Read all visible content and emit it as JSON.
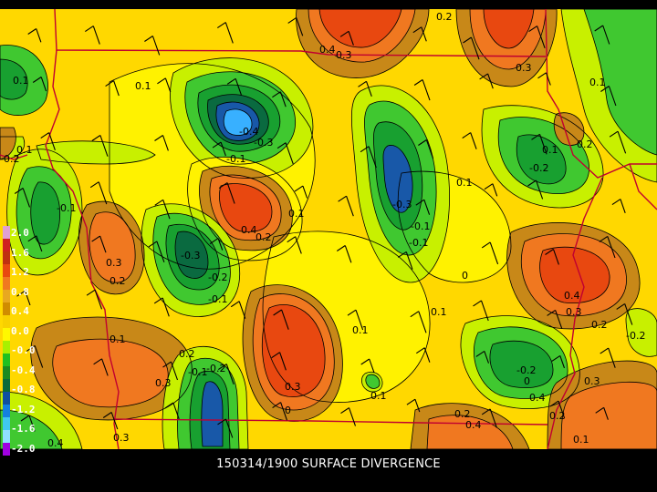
{
  "title": "150314/1900 SURFACE DIVERGENCE",
  "legend": {
    "labels": [
      "2.0",
      "1.6",
      "1.2",
      "0.8",
      "0.4",
      "0.0",
      "-0.0",
      "-0.4",
      "-0.8",
      "-1.2",
      "-1.6",
      "-2.0"
    ],
    "colors": [
      "#e0a0d0",
      "#d02020",
      "#c03010",
      "#e84810",
      "#f07820",
      "#e8a820",
      "#d08c00",
      "#f8d000",
      "#fff800",
      "#a8f000",
      "#20c020",
      "#1a8a20",
      "#0a6a3a",
      "#1050a0",
      "#1480e0",
      "#40c8f0",
      "#90e0ff",
      "#a000e0"
    ]
  },
  "palette": {
    "p04": "#e84810",
    "p03": "#f07820",
    "p02": "#c88818",
    "p01": "#ffc800",
    "p00": "#ffea00",
    "m01": "#c8f000",
    "m02": "#40c830",
    "m03": "#18a030",
    "m04": "#0a6a40",
    "m05": "#1858a8",
    "m06": "#38b0ff",
    "background": "#ffd800",
    "boundary": "#c00030",
    "contour": "#000000"
  },
  "contour_labels": [
    "0.1",
    "0.4",
    "0.3",
    "0.2",
    "0.3",
    "0.1",
    "-0.4",
    "-0.3",
    "0.1",
    "0.2",
    "0.1",
    "-0.1",
    "-0.1",
    "-0.2",
    "0.1",
    "-0.3",
    "-0.1",
    "0.1",
    "0.3",
    "0.2",
    "0.4",
    "0.2",
    "0.1",
    "-0.3",
    "-0.2",
    "-0.1",
    "-0.1",
    "0.2",
    "0",
    "0.4",
    "0.3",
    "0.2",
    "0.1",
    "0.1",
    "0.1",
    "0.2",
    "0.3",
    "-0.2",
    "-0.1",
    "-0.2",
    "0",
    "0.4",
    "0.3",
    "0",
    "0.1",
    "0.3",
    "0.4",
    "0.2",
    "0.4",
    "0.2",
    "0.1",
    "-0.2",
    "0.3"
  ],
  "wind_barb_count": 80
}
